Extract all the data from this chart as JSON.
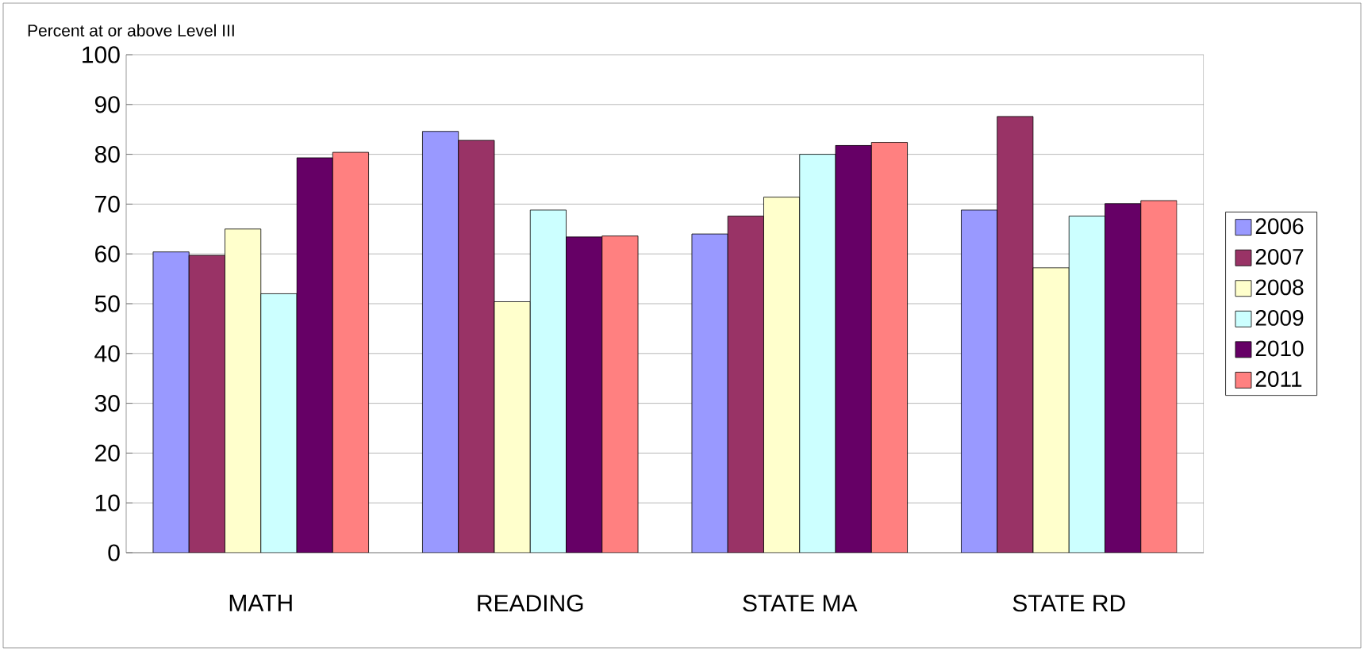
{
  "chart_data": {
    "type": "bar",
    "ylabel": "Percent at or above Level III",
    "categories": [
      "MATH",
      "READING",
      "STATE MA",
      "STATE RD"
    ],
    "series": [
      {
        "name": "2006",
        "color": "#9999ff",
        "values": [
          60.4,
          84.6,
          64.0,
          68.8
        ]
      },
      {
        "name": "2007",
        "color": "#993366",
        "values": [
          59.7,
          82.8,
          67.6,
          87.6
        ]
      },
      {
        "name": "2008",
        "color": "#ffffcc",
        "values": [
          65.0,
          50.4,
          71.4,
          57.2
        ]
      },
      {
        "name": "2009",
        "color": "#ccffff",
        "values": [
          52.0,
          68.8,
          80.0,
          67.6
        ]
      },
      {
        "name": "2010",
        "color": "#660066",
        "values": [
          79.3,
          63.4,
          81.8,
          70.1
        ]
      },
      {
        "name": "2011",
        "color": "#ff8080",
        "values": [
          80.4,
          63.6,
          82.4,
          70.7
        ]
      }
    ],
    "ylim": [
      0,
      100
    ],
    "yticks": [
      0,
      10,
      20,
      30,
      40,
      50,
      60,
      70,
      80,
      90,
      100
    ],
    "grid": "y",
    "legend": "right"
  }
}
